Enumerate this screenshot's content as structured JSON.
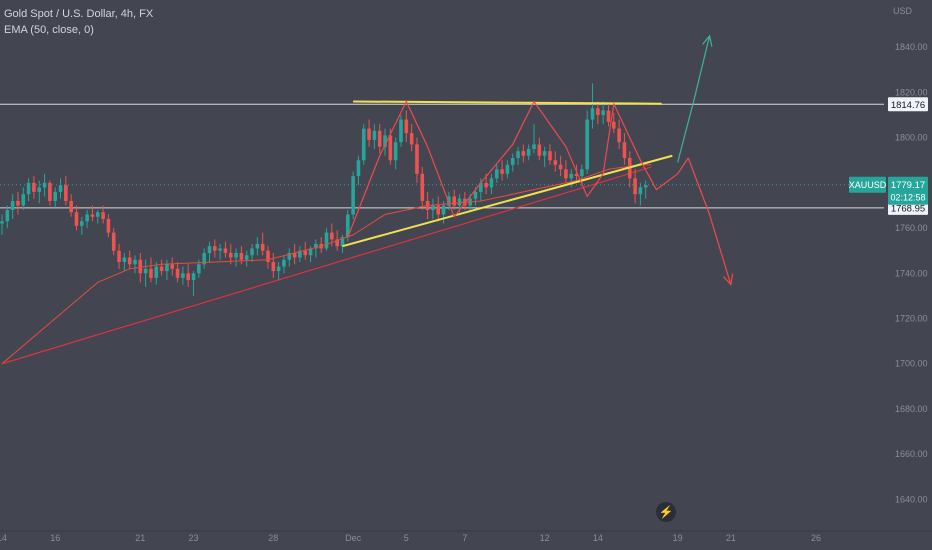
{
  "header": {
    "title": "Gold Spot / U.S. Dollar, 4h, FX",
    "indicator": "EMA (50, close, 0)"
  },
  "colors": {
    "background": "#434651",
    "up_candle": "#26a69a",
    "down_candle": "#ef5350",
    "ema": "#e84b3c",
    "trendline": "#d9333f",
    "triangle": "#f2e14c",
    "zigzag": "#f0494c",
    "bull_arrow": "#3fb39b",
    "bear_arrow": "#f0494c",
    "level": "#d9d9d9",
    "current_price_badge": "#26a69a"
  },
  "chart_data": {
    "type": "candlestick",
    "symbol": "XAUUSD",
    "timeframe": "4h",
    "currency_label": "USD",
    "y_range": [
      1630,
      1860
    ],
    "y_ticks": [
      1640,
      1660,
      1680,
      1700,
      1720,
      1740,
      1760,
      1780,
      1800,
      1820,
      1840
    ],
    "x_ticks": [
      {
        "label": "14",
        "bar": 0
      },
      {
        "label": "16",
        "bar": 10
      },
      {
        "label": "21",
        "bar": 26
      },
      {
        "label": "23",
        "bar": 36
      },
      {
        "label": "28",
        "bar": 51
      },
      {
        "label": "Dec",
        "bar": 66
      },
      {
        "label": "5",
        "bar": 76
      },
      {
        "label": "7",
        "bar": 87
      },
      {
        "label": "12",
        "bar": 102
      },
      {
        "label": "14",
        "bar": 112
      },
      {
        "label": "19",
        "bar": 127
      },
      {
        "label": "21",
        "bar": 137
      },
      {
        "label": "26",
        "bar": 153
      }
    ],
    "levels": [
      {
        "price": 1814.76,
        "label": "1814.76"
      },
      {
        "price": 1768.95,
        "label": "1768.95"
      }
    ],
    "current_price": {
      "price": 1779.17,
      "symbol": "XAUUSD",
      "value": "1779.17",
      "countdown": "02:12:58"
    },
    "bars_axis": {
      "first": 0,
      "last": 165
    },
    "candles": [
      [
        1762,
        1766,
        1757,
        1763
      ],
      [
        1763,
        1770,
        1760,
        1768
      ],
      [
        1768,
        1775,
        1764,
        1772
      ],
      [
        1772,
        1776,
        1766,
        1770
      ],
      [
        1770,
        1778,
        1768,
        1775
      ],
      [
        1775,
        1782,
        1772,
        1780
      ],
      [
        1780,
        1783,
        1773,
        1776
      ],
      [
        1776,
        1781,
        1771,
        1778
      ],
      [
        1778,
        1784,
        1774,
        1780
      ],
      [
        1780,
        1781,
        1770,
        1772
      ],
      [
        1772,
        1778,
        1769,
        1776
      ],
      [
        1776,
        1782,
        1773,
        1779
      ],
      [
        1779,
        1783,
        1770,
        1772
      ],
      [
        1772,
        1775,
        1765,
        1767
      ],
      [
        1767,
        1770,
        1759,
        1761
      ],
      [
        1761,
        1765,
        1757,
        1763
      ],
      [
        1763,
        1768,
        1760,
        1766
      ],
      [
        1766,
        1770,
        1763,
        1765
      ],
      [
        1765,
        1768,
        1762,
        1767
      ],
      [
        1767,
        1770,
        1762,
        1764
      ],
      [
        1764,
        1766,
        1756,
        1758
      ],
      [
        1758,
        1760,
        1748,
        1750
      ],
      [
        1750,
        1753,
        1742,
        1745
      ],
      [
        1745,
        1749,
        1741,
        1747
      ],
      [
        1747,
        1750,
        1742,
        1744
      ],
      [
        1744,
        1748,
        1740,
        1746
      ],
      [
        1746,
        1749,
        1736,
        1740
      ],
      [
        1740,
        1746,
        1734,
        1742
      ],
      [
        1742,
        1747,
        1736,
        1738
      ],
      [
        1738,
        1745,
        1735,
        1743
      ],
      [
        1743,
        1746,
        1739,
        1741
      ],
      [
        1741,
        1746,
        1737,
        1744
      ],
      [
        1744,
        1747,
        1739,
        1742
      ],
      [
        1742,
        1745,
        1736,
        1738
      ],
      [
        1738,
        1743,
        1735,
        1740
      ],
      [
        1740,
        1744,
        1734,
        1737
      ],
      [
        1737,
        1741,
        1730,
        1740
      ],
      [
        1740,
        1746,
        1738,
        1744
      ],
      [
        1744,
        1751,
        1742,
        1749
      ],
      [
        1749,
        1754,
        1745,
        1752
      ],
      [
        1752,
        1755,
        1747,
        1750
      ],
      [
        1750,
        1753,
        1746,
        1751
      ],
      [
        1751,
        1754,
        1747,
        1749
      ],
      [
        1749,
        1753,
        1744,
        1747
      ],
      [
        1747,
        1751,
        1743,
        1749
      ],
      [
        1749,
        1752,
        1744,
        1746
      ],
      [
        1746,
        1750,
        1743,
        1748
      ],
      [
        1748,
        1753,
        1745,
        1751
      ],
      [
        1751,
        1756,
        1748,
        1753
      ],
      [
        1753,
        1758,
        1748,
        1750
      ],
      [
        1750,
        1752,
        1742,
        1745
      ],
      [
        1745,
        1749,
        1738,
        1741
      ],
      [
        1741,
        1745,
        1737,
        1743
      ],
      [
        1743,
        1748,
        1740,
        1746
      ],
      [
        1746,
        1751,
        1743,
        1749
      ],
      [
        1749,
        1753,
        1744,
        1747
      ],
      [
        1747,
        1752,
        1745,
        1750
      ],
      [
        1750,
        1754,
        1746,
        1748
      ],
      [
        1748,
        1752,
        1745,
        1751
      ],
      [
        1751,
        1755,
        1747,
        1753
      ],
      [
        1753,
        1756,
        1749,
        1751
      ],
      [
        1751,
        1760,
        1750,
        1758
      ],
      [
        1758,
        1762,
        1752,
        1755
      ],
      [
        1755,
        1759,
        1750,
        1752
      ],
      [
        1752,
        1757,
        1749,
        1756
      ],
      [
        1756,
        1768,
        1754,
        1766
      ],
      [
        1766,
        1785,
        1764,
        1783
      ],
      [
        1783,
        1792,
        1779,
        1790
      ],
      [
        1790,
        1806,
        1788,
        1804
      ],
      [
        1804,
        1808,
        1796,
        1799
      ],
      [
        1799,
        1806,
        1795,
        1803
      ],
      [
        1803,
        1806,
        1793,
        1796
      ],
      [
        1796,
        1804,
        1792,
        1801
      ],
      [
        1801,
        1804,
        1788,
        1790
      ],
      [
        1790,
        1800,
        1786,
        1798
      ],
      [
        1798,
        1810,
        1796,
        1808
      ],
      [
        1808,
        1812,
        1798,
        1802
      ],
      [
        1802,
        1806,
        1794,
        1797
      ],
      [
        1797,
        1800,
        1780,
        1784
      ],
      [
        1784,
        1787,
        1768,
        1772
      ],
      [
        1772,
        1776,
        1764,
        1768
      ],
      [
        1768,
        1773,
        1764,
        1770
      ],
      [
        1770,
        1774,
        1763,
        1766
      ],
      [
        1766,
        1772,
        1762,
        1770
      ],
      [
        1770,
        1776,
        1768,
        1774
      ],
      [
        1774,
        1777,
        1768,
        1770
      ],
      [
        1770,
        1775,
        1767,
        1773
      ],
      [
        1773,
        1776,
        1768,
        1770
      ],
      [
        1770,
        1775,
        1767,
        1773
      ],
      [
        1773,
        1778,
        1770,
        1776
      ],
      [
        1776,
        1782,
        1772,
        1780
      ],
      [
        1780,
        1784,
        1775,
        1778
      ],
      [
        1778,
        1784,
        1775,
        1782
      ],
      [
        1782,
        1788,
        1780,
        1786
      ],
      [
        1786,
        1790,
        1781,
        1784
      ],
      [
        1784,
        1790,
        1782,
        1788
      ],
      [
        1788,
        1793,
        1785,
        1791
      ],
      [
        1791,
        1796,
        1788,
        1794
      ],
      [
        1794,
        1797,
        1789,
        1792
      ],
      [
        1792,
        1797,
        1790,
        1795
      ],
      [
        1795,
        1806,
        1793,
        1797
      ],
      [
        1797,
        1800,
        1790,
        1792
      ],
      [
        1792,
        1796,
        1787,
        1794
      ],
      [
        1794,
        1797,
        1788,
        1790
      ],
      [
        1790,
        1794,
        1785,
        1788
      ],
      [
        1788,
        1792,
        1783,
        1786
      ],
      [
        1786,
        1790,
        1780,
        1782
      ],
      [
        1782,
        1786,
        1778,
        1784
      ],
      [
        1784,
        1788,
        1780,
        1783
      ],
      [
        1783,
        1788,
        1779,
        1786
      ],
      [
        1786,
        1812,
        1784,
        1808
      ],
      [
        1808,
        1824,
        1804,
        1813
      ],
      [
        1813,
        1816,
        1806,
        1810
      ],
      [
        1810,
        1816,
        1806,
        1812
      ],
      [
        1812,
        1815,
        1805,
        1807
      ],
      [
        1807,
        1811,
        1802,
        1804
      ],
      [
        1804,
        1808,
        1795,
        1798
      ],
      [
        1798,
        1802,
        1788,
        1791
      ],
      [
        1791,
        1794,
        1778,
        1782
      ],
      [
        1782,
        1786,
        1771,
        1775
      ],
      [
        1775,
        1780,
        1770,
        1778
      ],
      [
        1778,
        1781,
        1773,
        1779
      ]
    ],
    "series": [
      {
        "name": "EMA (50, close, 0)",
        "type": "line",
        "points": [
          [
            0,
            1700
          ],
          [
            6,
            1712
          ],
          [
            12,
            1724
          ],
          [
            18,
            1736
          ],
          [
            24,
            1742
          ],
          [
            30,
            1744
          ],
          [
            40,
            1745
          ],
          [
            50,
            1746
          ],
          [
            60,
            1752
          ],
          [
            66,
            1757
          ],
          [
            72,
            1766
          ],
          [
            80,
            1770
          ],
          [
            90,
            1772
          ],
          [
            100,
            1777
          ],
          [
            108,
            1781
          ],
          [
            114,
            1786
          ],
          [
            120,
            1788
          ],
          [
            122,
            1788
          ]
        ]
      }
    ],
    "annotations": {
      "trendline": {
        "points": [
          [
            0,
            1700
          ],
          [
            122,
            1787
          ]
        ]
      },
      "triangle_top": {
        "points": [
          [
            66,
            1816
          ],
          [
            124,
            1815
          ]
        ]
      },
      "triangle_bottom": {
        "points": [
          [
            64,
            1752
          ],
          [
            126,
            1792
          ]
        ]
      },
      "zigzag": {
        "points": [
          [
            65,
            1756
          ],
          [
            71,
            1792
          ],
          [
            76,
            1816
          ],
          [
            80,
            1796
          ],
          [
            85,
            1765
          ],
          [
            90,
            1780
          ],
          [
            96,
            1797
          ],
          [
            100,
            1816
          ],
          [
            106,
            1796
          ],
          [
            110,
            1774
          ],
          [
            113,
            1784
          ],
          [
            115,
            1815
          ],
          [
            120,
            1790
          ],
          [
            123,
            1777
          ],
          [
            127,
            1784
          ],
          [
            129,
            1791
          ]
        ]
      },
      "bull_arrow": {
        "points": [
          [
            127,
            1789
          ],
          [
            130,
            1816
          ],
          [
            133,
            1845
          ]
        ]
      },
      "bear_arrow": {
        "points": [
          [
            129,
            1791
          ],
          [
            133,
            1766
          ],
          [
            137,
            1735
          ]
        ]
      }
    }
  }
}
